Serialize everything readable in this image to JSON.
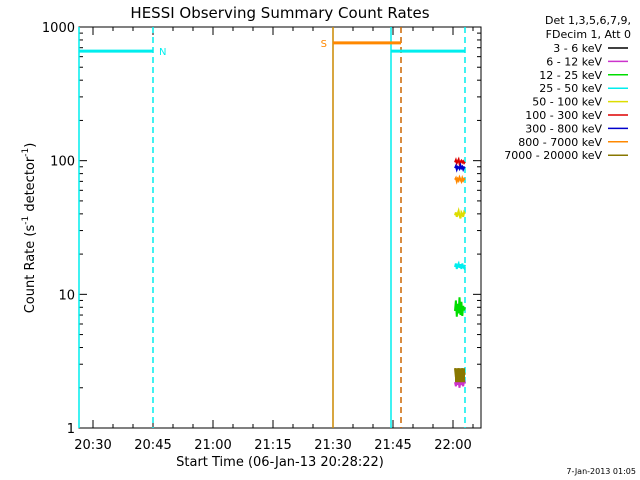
{
  "chart_data": {
    "type": "line",
    "title": "HESSI Observing Summary Count Rates",
    "xlabel": "Start Time (06-Jan-13 20:28:22)",
    "ylabel_main": "Count Rate (s",
    "ylabel_sup1": "-1",
    "ylabel_mid": " detector",
    "ylabel_sup2": "-1",
    "ylabel_end": ")",
    "y_scale": "log",
    "ylim": [
      1,
      1000
    ],
    "xlim_minutes_after_2000": [
      26.5,
      127
    ],
    "x_ticks": [
      {
        "label": "20:30",
        "t": 30
      },
      {
        "label": "20:45",
        "t": 45
      },
      {
        "label": "21:00",
        "t": 60
      },
      {
        "label": "21:15",
        "t": 75
      },
      {
        "label": "21:30",
        "t": 90
      },
      {
        "label": "21:45",
        "t": 105
      },
      {
        "label": "22:00",
        "t": 120
      }
    ],
    "y_ticks": [
      {
        "label": "1",
        "v": 1
      },
      {
        "label": "10",
        "v": 10
      },
      {
        "label": "100",
        "v": 100
      },
      {
        "label": "1000",
        "v": 1000
      }
    ],
    "legend": {
      "header": [
        "Det 1,3,5,6,7,9,",
        "FDecim 1, Att 0"
      ],
      "placement": "right",
      "entries": [
        {
          "label": "3 - 6 keV",
          "color": "#000000"
        },
        {
          "label": "6 - 12 keV",
          "color": "#cc33cc"
        },
        {
          "label": "12 - 25 keV",
          "color": "#00dd00"
        },
        {
          "label": "25 - 50 keV",
          "color": "#00eeee"
        },
        {
          "label": "50 - 100 keV",
          "color": "#dddd00"
        },
        {
          "label": "100 - 300 keV",
          "color": "#dd0000"
        },
        {
          "label": "300 - 800 keV",
          "color": "#0000cc"
        },
        {
          "label": "800 - 7000 keV",
          "color": "#ff8800"
        },
        {
          "label": "7000 - 20000 keV",
          "color": "#887700"
        }
      ]
    },
    "flags": [
      {
        "label": "N",
        "color": "#00eeee",
        "t_start": 26.5,
        "t_end": 45,
        "value": 660
      },
      {
        "label": "S",
        "color": "#ff8800",
        "t_start": 90,
        "t_end": 107,
        "value": 760
      },
      {
        "label": "",
        "color": "#00eeee",
        "t_start": 104.5,
        "t_end": 123,
        "value": 660
      }
    ],
    "vertical_markers": [
      {
        "t": 26.5,
        "color": "#00eeee",
        "style": "solid"
      },
      {
        "t": 45,
        "color": "#00eeee",
        "style": "dashed"
      },
      {
        "t": 90,
        "color": "#cc8800",
        "style": "solid"
      },
      {
        "t": 104.5,
        "color": "#00eeee",
        "style": "solid"
      },
      {
        "t": 107,
        "color": "#cc6600",
        "style": "dashed"
      },
      {
        "t": 123,
        "color": "#00eeee",
        "style": "dashed"
      }
    ],
    "series": [
      {
        "name": "100 - 300 keV",
        "color": "#dd0000",
        "t_start": 120.5,
        "t_end": 123,
        "values": [
          97,
          101,
          96,
          99,
          102,
          95,
          98,
          100,
          97,
          99,
          96,
          98
        ]
      },
      {
        "name": "300 - 800 keV",
        "color": "#0000cc",
        "t_start": 120.5,
        "t_end": 123,
        "values": [
          88,
          91,
          86,
          90,
          89,
          87,
          92,
          88,
          90,
          86,
          89,
          88
        ]
      },
      {
        "name": "800 - 7000 keV",
        "color": "#ff8800",
        "t_start": 120.5,
        "t_end": 123,
        "values": [
          72,
          74,
          70,
          73,
          71,
          75,
          72,
          70,
          74,
          71,
          73,
          72
        ]
      },
      {
        "name": "50 - 100 keV",
        "color": "#dddd00",
        "t_start": 120.5,
        "t_end": 123,
        "values": [
          39,
          41,
          38,
          40,
          42,
          39,
          37,
          41,
          40,
          38,
          41,
          40
        ]
      },
      {
        "name": "25 - 50 keV",
        "color": "#00eeee",
        "t_start": 120.5,
        "t_end": 123,
        "values": [
          16,
          17,
          15.5,
          16.5,
          17,
          15.8,
          16.8,
          15.5,
          17,
          16,
          15.7,
          16.6
        ]
      },
      {
        "name": "12 - 25 keV",
        "color": "#00dd00",
        "t_start": 120.5,
        "t_end": 123,
        "values": [
          7.5,
          9,
          6.8,
          8.5,
          7.2,
          9.5,
          7,
          8.8,
          6.9,
          8.2,
          7.6,
          8
        ]
      },
      {
        "name": "7000 - 20000 keV",
        "color": "#887700",
        "t_start": 120.5,
        "t_end": 123,
        "values": [
          2.8,
          2.4,
          2.7,
          2.3,
          2.8,
          2.2,
          2.7,
          2.4,
          2.8,
          2.3,
          2.6,
          2.5
        ]
      },
      {
        "name": "6 - 12 keV",
        "color": "#cc33cc",
        "t_start": 120.5,
        "t_end": 123,
        "values": [
          2.2,
          2.05,
          2.3,
          2.1,
          2.25,
          2.0,
          2.3,
          2.1,
          2.2,
          2.05,
          2.3,
          2.15
        ]
      }
    ],
    "footer": "7-Jan-2013 01:05"
  }
}
